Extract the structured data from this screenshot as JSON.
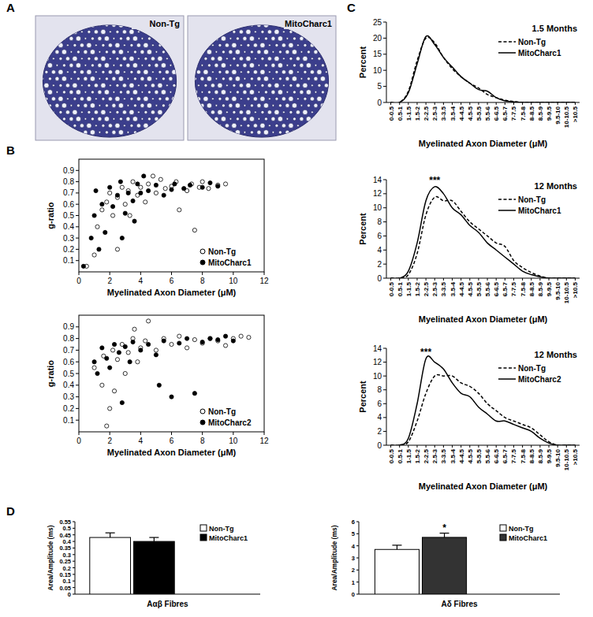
{
  "panel_labels": [
    "A",
    "B",
    "C",
    "D"
  ],
  "images": [
    {
      "label": "Non-Tg"
    },
    {
      "label": "MitoCharc1"
    }
  ],
  "chart_data": [
    {
      "type": "scatter",
      "x_label": "Myelinated Axon Diameter (μM)",
      "y_label": "g-ratio",
      "xlim": [
        0,
        12
      ],
      "xticks": [
        0,
        2,
        4,
        6,
        8,
        10,
        12
      ],
      "ylim": [
        0,
        1
      ],
      "yticks": [
        0.1,
        0.2,
        0.3,
        0.4,
        0.5,
        0.6,
        0.7,
        0.8,
        0.9
      ],
      "legend": "bottom-right",
      "series": [
        {
          "name": "Non-Tg",
          "color": "#000000",
          "marker": "open-circle",
          "x": [
            0.5,
            1,
            1.2,
            1.5,
            1.8,
            2,
            2.2,
            2.5,
            2.8,
            3,
            3.2,
            3.5,
            3.8,
            4,
            4.3,
            4.5,
            5,
            5.3,
            5.6,
            6,
            6.3,
            6.5,
            7,
            7.3,
            7.5,
            7.8,
            8,
            8.4,
            9,
            9.5,
            2.5,
            3.3,
            4.8
          ],
          "values": [
            0.05,
            0.15,
            0.4,
            0.55,
            0.62,
            0.7,
            0.5,
            0.66,
            0.75,
            0.6,
            0.72,
            0.8,
            0.68,
            0.75,
            0.62,
            0.78,
            0.7,
            0.82,
            0.74,
            0.76,
            0.8,
            0.55,
            0.72,
            0.78,
            0.37,
            0.75,
            0.8,
            0.74,
            0.77,
            0.78,
            0.2,
            0.5,
            0.85
          ]
        },
        {
          "name": "MitoCharc1",
          "color": "#000000",
          "marker": "circle",
          "x": [
            0.3,
            0.8,
            1,
            1.3,
            1.5,
            1.7,
            2,
            2.2,
            2.5,
            2.7,
            3,
            3.2,
            3.5,
            3.8,
            4,
            4.2,
            4.5,
            5,
            5.5,
            6,
            6.2,
            6.8,
            7.2,
            8,
            8.5,
            9,
            2.8,
            1.1,
            3.6
          ],
          "values": [
            0.05,
            0.3,
            0.5,
            0.2,
            0.6,
            0.35,
            0.75,
            0.58,
            0.68,
            0.8,
            0.52,
            0.7,
            0.63,
            0.78,
            0.7,
            0.85,
            0.72,
            0.77,
            0.68,
            0.73,
            0.78,
            0.74,
            0.77,
            0.75,
            0.79,
            0.76,
            0.3,
            0.72,
            0.45
          ]
        }
      ]
    },
    {
      "type": "scatter",
      "x_label": "Myelinated Axon Diameter (μM)",
      "y_label": "g-ratio",
      "xlim": [
        0,
        12
      ],
      "xticks": [
        0,
        2,
        4,
        6,
        8,
        10,
        12
      ],
      "ylim": [
        0,
        1
      ],
      "yticks": [
        0.1,
        0.2,
        0.3,
        0.4,
        0.5,
        0.6,
        0.7,
        0.8,
        0.9
      ],
      "legend": "bottom-right",
      "series": [
        {
          "name": "Non-Tg",
          "color": "#000000",
          "marker": "open-circle",
          "x": [
            1,
            1.5,
            1.6,
            2,
            2.2,
            2.5,
            2.8,
            3,
            3.2,
            3.5,
            3.8,
            4,
            4.3,
            4.5,
            5,
            5.5,
            6,
            6.5,
            7,
            7.5,
            8,
            8.5,
            9,
            9.5,
            10,
            10.5,
            11,
            1.8,
            2.3,
            3.6
          ],
          "values": [
            0.55,
            0.4,
            0.65,
            0.2,
            0.7,
            0.62,
            0.75,
            0.5,
            0.68,
            0.8,
            0.6,
            0.72,
            0.78,
            0.95,
            0.7,
            0.8,
            0.75,
            0.82,
            0.72,
            0.79,
            0.76,
            0.8,
            0.78,
            0.74,
            0.8,
            0.82,
            0.81,
            0.05,
            0.35,
            0.88
          ]
        },
        {
          "name": "MitoCharc2",
          "color": "#000000",
          "marker": "circle",
          "x": [
            1,
            1.2,
            1.5,
            1.8,
            2,
            2.3,
            2.6,
            3,
            3.3,
            3.5,
            4,
            4.5,
            5,
            5.5,
            6,
            6.5,
            7,
            7.5,
            8,
            8.5,
            9,
            9.5,
            10,
            2.8,
            5.2
          ],
          "values": [
            0.6,
            0.5,
            0.72,
            0.63,
            0.55,
            0.75,
            0.68,
            0.73,
            0.6,
            0.77,
            0.7,
            0.75,
            0.66,
            0.78,
            0.3,
            0.76,
            0.8,
            0.33,
            0.77,
            0.8,
            0.79,
            0.82,
            0.78,
            0.25,
            0.4
          ]
        }
      ]
    },
    {
      "type": "line",
      "title": "1.5 Months",
      "x_label": "Myelinated Axon Diameter (μM)",
      "y_label": "Percent",
      "categories": [
        "0-0.5",
        "0.5-1",
        "1-1.5",
        "1.5-2",
        "2-2.5",
        "2.5-3",
        "3-3.5",
        "3.5-4",
        "4-4.5",
        "4.5-5",
        "5-5.5",
        "5.5-6",
        "6-6.5",
        "6.5-7",
        "7-7.5",
        "7.5-8",
        "8-8.5",
        "8.5-9",
        "9-9.5",
        "9.5-10",
        "10-10.5",
        ">10.5"
      ],
      "ylim": [
        0,
        25
      ],
      "yticks": [
        0,
        5,
        10,
        15,
        20,
        25
      ],
      "legend": "top-right",
      "series": [
        {
          "name": "Non-Tg",
          "color": "#000000",
          "line_style": "dashed",
          "values": [
            0,
            0,
            3.5,
            13,
            20,
            18.5,
            14,
            10.5,
            8,
            6,
            4.5,
            2.5,
            1.5,
            0.7,
            0.3,
            0,
            0,
            0,
            0,
            0,
            0,
            0
          ]
        },
        {
          "name": "MitoCharc1",
          "color": "#000000",
          "line_style": "solid",
          "values": [
            0,
            0,
            3,
            12,
            20.5,
            18,
            14,
            11,
            8,
            6,
            4,
            3.5,
            1.5,
            0.5,
            0.2,
            0,
            0,
            0,
            0,
            0,
            0,
            0
          ]
        }
      ]
    },
    {
      "type": "line",
      "title": "12 Months",
      "x_label": "Myelinated Axon Diameter (μM)",
      "y_label": "Percent",
      "categories": [
        "0-0.5",
        "0.5-1",
        "1-1.5",
        "1.5-2",
        "2-2.5",
        "2.5-3",
        "3-3.5",
        "3.5-4",
        "4-4.5",
        "4.5-5",
        "5-5.5",
        "5.5-6",
        "6-6.5",
        "6.5-7",
        "7-7.5",
        "7.5-8",
        "8-8.5",
        "8.5-9",
        "9-9.5",
        "9.5-10",
        "10-10.5",
        ">10.5"
      ],
      "ylim": [
        0,
        14
      ],
      "yticks": [
        0,
        2,
        4,
        6,
        8,
        10,
        12,
        14
      ],
      "legend": "top-right",
      "annotations": [
        "***"
      ],
      "series": [
        {
          "name": "Non-Tg",
          "color": "#000000",
          "line_style": "dashed",
          "values": [
            0,
            0,
            0.5,
            3.5,
            9,
            11.5,
            11,
            11,
            9.5,
            8,
            7,
            6,
            5,
            4.5,
            2.5,
            1.5,
            0.8,
            0.3,
            0,
            0,
            0,
            0
          ]
        },
        {
          "name": "MitoCharc1",
          "color": "#000000",
          "line_style": "solid",
          "values": [
            0,
            0,
            1,
            5,
            11,
            13,
            12,
            10,
            9,
            7.5,
            6.5,
            5,
            4,
            3,
            2,
            1,
            0.5,
            0.2,
            0,
            0,
            0,
            0
          ]
        }
      ]
    },
    {
      "type": "line",
      "title": "12 Months",
      "x_label": "Myelinated Axon Diameter (μM)",
      "y_label": "Percent",
      "categories": [
        "0-0.5",
        "0.5-1",
        "1-1.5",
        "1.5-2",
        "2-2.5",
        "2.5-3",
        "3-3.5",
        "3.5-4",
        "4-4.5",
        "4.5-5",
        "5-5.5",
        "5.5-6",
        "6-6.5",
        "6.5-7",
        "7-7.5",
        "7.5-8",
        "8-8.5",
        "8.5-9",
        "9-9.5",
        "9.5-10",
        "10-10.5",
        ">10.5"
      ],
      "ylim": [
        0,
        14
      ],
      "yticks": [
        0,
        2,
        4,
        6,
        8,
        10,
        12,
        14
      ],
      "legend": "top-right",
      "annotations": [
        "***"
      ],
      "series": [
        {
          "name": "Non-Tg",
          "color": "#000000",
          "line_style": "dashed",
          "values": [
            0,
            0,
            0.5,
            3.5,
            7.5,
            10,
            10,
            10,
            9,
            8.5,
            7.5,
            6,
            5,
            4,
            3.5,
            3,
            2.5,
            1.5,
            0.5,
            0,
            0,
            0
          ]
        },
        {
          "name": "MitoCharc2",
          "color": "#000000",
          "line_style": "solid",
          "values": [
            0,
            0,
            1,
            6,
            12.5,
            12,
            11,
            9,
            7.5,
            7,
            5.5,
            4.5,
            3.5,
            3.5,
            3,
            2.5,
            2,
            1,
            0.3,
            0,
            0,
            0
          ]
        }
      ]
    },
    {
      "type": "bar",
      "y_label": "Area/Amplitude (ms)",
      "categories": [
        "Aαβ Fibres"
      ],
      "ylim": [
        0,
        0.55
      ],
      "yticks": [
        0,
        0.05,
        0.1,
        0.15,
        0.2,
        0.25,
        0.3,
        0.35,
        0.4,
        0.45,
        0.5,
        0.55
      ],
      "legend": "top-right",
      "series": [
        {
          "name": "Non-Tg",
          "color": "#ffffff",
          "values": [
            0.43
          ],
          "errors": [
            0.035
          ]
        },
        {
          "name": "MitoCharc1",
          "color": "#000000",
          "values": [
            0.4
          ],
          "errors": [
            0.03
          ]
        }
      ]
    },
    {
      "type": "bar",
      "y_label": "Area/Amplitude (ms)",
      "categories": [
        "Aδ Fibres"
      ],
      "ylim": [
        0,
        6
      ],
      "yticks": [
        0,
        1,
        2,
        3,
        4,
        5,
        6
      ],
      "legend": "top-right",
      "annotations": [
        "*"
      ],
      "series": [
        {
          "name": "Non-Tg",
          "color": "#ffffff",
          "values": [
            3.7
          ],
          "errors": [
            0.35
          ]
        },
        {
          "name": "MitoCharc1",
          "color": "#333333",
          "values": [
            4.7
          ],
          "errors": [
            0.35
          ]
        }
      ]
    }
  ]
}
